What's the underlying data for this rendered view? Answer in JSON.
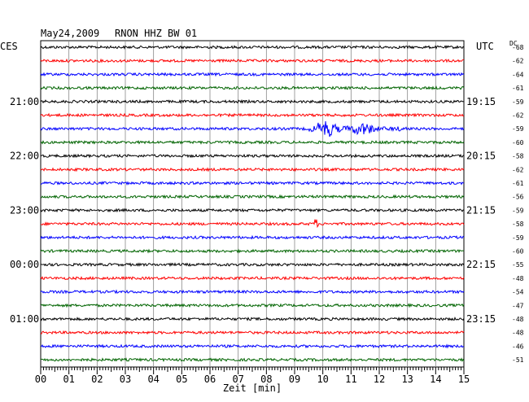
{
  "header": {
    "date": "May24,2009",
    "station": "RNON HHZ BW 01",
    "left_tz": "CES",
    "right_tz": "UTC",
    "dc_label": "DC"
  },
  "chart_data": {
    "type": "line",
    "title": "May24,2009   RNON HHZ BW 01",
    "xlabel": "Zeit [min]",
    "x_ticks": [
      "00",
      "01",
      "02",
      "03",
      "04",
      "05",
      "06",
      "07",
      "08",
      "09",
      "10",
      "11",
      "12",
      "13",
      "14",
      "15"
    ],
    "xlim": [
      0,
      15
    ],
    "trace_colors": [
      "#000000",
      "#ff0000",
      "#0000ff",
      "#006400"
    ],
    "left_hour_labels": [
      {
        "trace": 4,
        "text": "21:00"
      },
      {
        "trace": 8,
        "text": "22:00"
      },
      {
        "trace": 12,
        "text": "23:00"
      },
      {
        "trace": 16,
        "text": "00:00"
      },
      {
        "trace": 20,
        "text": "01:00"
      }
    ],
    "right_hour_labels": [
      {
        "trace": 4,
        "text": "19:15"
      },
      {
        "trace": 8,
        "text": "20:15"
      },
      {
        "trace": 12,
        "text": "21:15"
      },
      {
        "trace": 16,
        "text": "22:15"
      },
      {
        "trace": 20,
        "text": "23:15"
      }
    ],
    "dc_offsets": [
      "-68",
      "-62",
      "-64",
      "-61",
      "-59",
      "-62",
      "-59",
      "-60",
      "-58",
      "-62",
      "-61",
      "-56",
      "-59",
      "-58",
      "-59",
      "-60",
      "-55",
      "-48",
      "-54",
      "-47",
      "-48",
      "-48",
      "-46",
      "-51"
    ],
    "events": [
      {
        "trace": 6,
        "start_min": 9.5,
        "end_min": 13.0,
        "description": "earthquake signal"
      },
      {
        "trace": 13,
        "start_min": 9.6,
        "end_min": 9.9,
        "description": "spike"
      }
    ]
  }
}
